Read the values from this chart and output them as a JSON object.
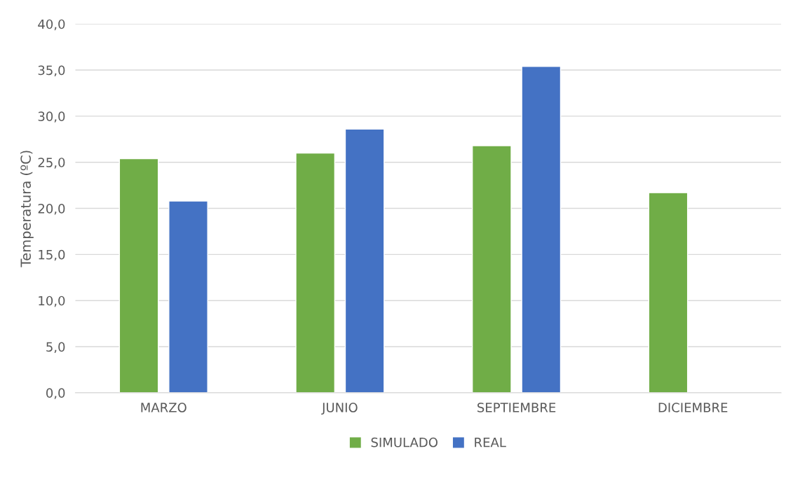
{
  "chart_data": {
    "type": "bar",
    "ylabel": "Temperatura (ºC)",
    "categories": [
      "MARZO",
      "JUNIO",
      "SEPTIEMBRE",
      "DICIEMBRE"
    ],
    "series": [
      {
        "name": "SIMULADO",
        "color": "#70ad47",
        "values": [
          25.4,
          26.0,
          26.8,
          21.7
        ]
      },
      {
        "name": "REAL",
        "color": "#4472c4",
        "values": [
          20.8,
          28.6,
          35.4,
          null
        ]
      }
    ],
    "ylim": [
      0,
      40
    ],
    "yticks": [
      {
        "value": 0,
        "label": "0,0"
      },
      {
        "value": 5,
        "label": "5,0"
      },
      {
        "value": 10,
        "label": "10,0"
      },
      {
        "value": 15,
        "label": "15,0"
      },
      {
        "value": 20,
        "label": "20,0"
      },
      {
        "value": 25,
        "label": "25,0"
      },
      {
        "value": 30,
        "label": "30,0"
      },
      {
        "value": 35,
        "label": "35,0"
      },
      {
        "value": 40,
        "label": "40,0"
      }
    ],
    "grid": "y",
    "legend": "bottom"
  }
}
